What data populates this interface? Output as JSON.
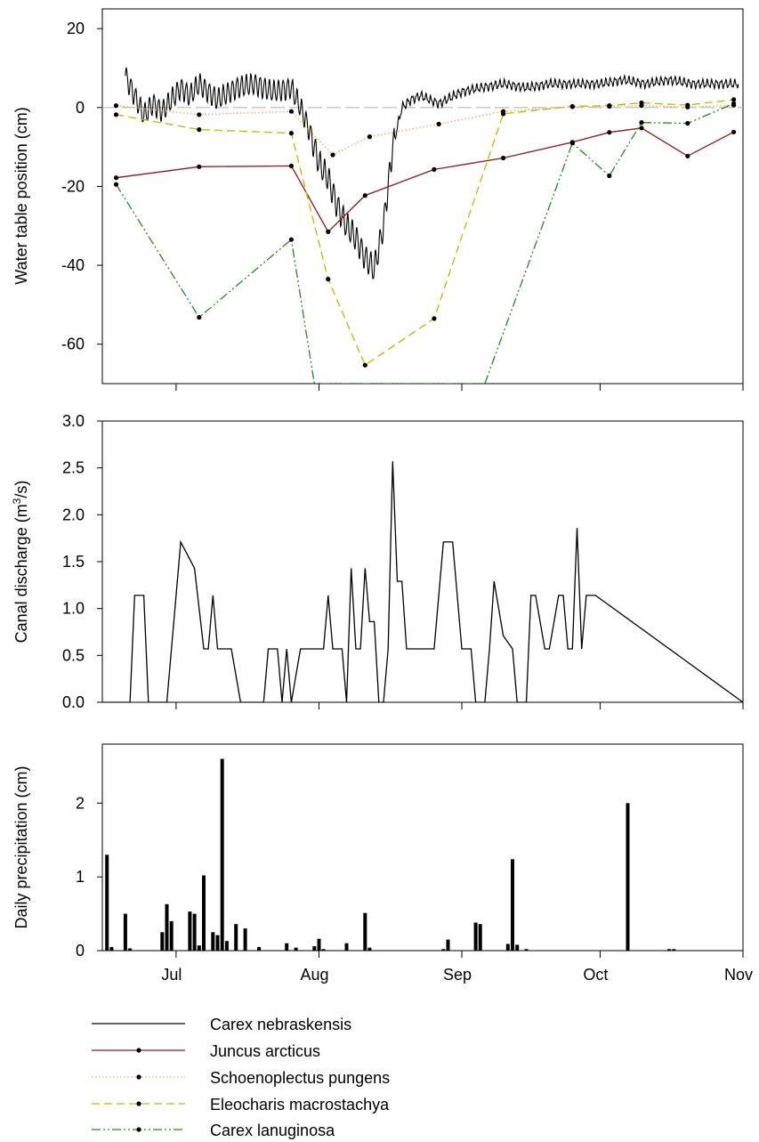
{
  "chart_data": [
    {
      "type": "line",
      "ylabel": "Water table position (cm)",
      "ylim": [
        -70,
        25
      ],
      "xlim": [
        "2010-06-15",
        "2010-11-01"
      ],
      "yticks": [
        20,
        0,
        -20,
        -40,
        -60
      ],
      "reference_line": 0,
      "series": [
        {
          "name": "Carex nebraskensis",
          "style": "solid",
          "color": "#000000",
          "markers": false,
          "x": [
            "2010-06-20",
            "2010-06-22",
            "2010-06-24",
            "2010-06-26",
            "2010-06-28",
            "2010-06-30",
            "2010-07-02",
            "2010-07-04",
            "2010-07-06",
            "2010-07-08",
            "2010-07-10",
            "2010-07-14",
            "2010-07-18",
            "2010-07-22",
            "2010-07-26",
            "2010-07-28",
            "2010-07-30",
            "2010-08-01",
            "2010-08-03",
            "2010-08-05",
            "2010-08-07",
            "2010-08-09",
            "2010-08-11",
            "2010-08-13",
            "2010-08-15",
            "2010-08-17",
            "2010-08-19",
            "2010-08-21",
            "2010-08-23",
            "2010-08-27",
            "2010-09-01",
            "2010-09-05",
            "2010-09-10",
            "2010-09-15",
            "2010-09-20",
            "2010-09-25",
            "2010-10-01",
            "2010-10-06",
            "2010-10-11",
            "2010-10-16",
            "2010-10-21",
            "2010-10-26",
            "2010-10-31"
          ],
          "y": [
            8,
            3,
            -2,
            1,
            -1,
            2,
            5,
            3,
            6,
            4,
            2,
            5,
            6,
            4,
            5,
            0,
            -6,
            -14,
            -18,
            -25,
            -30,
            -33,
            -38,
            -41,
            -30,
            -10,
            0,
            2,
            3,
            1,
            4,
            5,
            6,
            5,
            6,
            6,
            6,
            7,
            6,
            7,
            6,
            6,
            6
          ]
        },
        {
          "name": "Juncus arcticus",
          "style": "solid",
          "color": "#8b1a1a",
          "markers": true,
          "x": [
            "2010-06-18",
            "2010-07-06",
            "2010-07-26",
            "2010-08-03",
            "2010-08-11",
            "2010-08-26",
            "2010-09-10",
            "2010-09-25",
            "2010-10-03",
            "2010-10-10",
            "2010-10-20",
            "2010-10-30"
          ],
          "y": [
            -17.8,
            -15,
            -14.8,
            -31.5,
            -22.3,
            -15.7,
            -12.8,
            -8.8,
            -6.3,
            -5.2,
            -12.3,
            -6.2
          ]
        },
        {
          "name": "Schoenoplectus pungens",
          "style": "dotted",
          "color": "#f4a460",
          "markers": true,
          "x": [
            "2010-06-18",
            "2010-07-06",
            "2010-07-26",
            "2010-08-04",
            "2010-08-12",
            "2010-08-27",
            "2010-09-10",
            "2010-09-25",
            "2010-10-03",
            "2010-10-10",
            "2010-10-20",
            "2010-10-30"
          ],
          "y": [
            0.5,
            -1.8,
            -1,
            -12,
            -7.4,
            -4.2,
            -1,
            0.2,
            0.3,
            0.5,
            0.1,
            0.6
          ]
        },
        {
          "name": "Eleocharis macrostachya",
          "style": "dashed",
          "color": "#c8b400",
          "markers": true,
          "x": [
            "2010-06-18",
            "2010-07-06",
            "2010-07-26",
            "2010-08-03",
            "2010-08-11",
            "2010-08-26",
            "2010-09-10",
            "2010-09-25",
            "2010-10-03",
            "2010-10-10",
            "2010-10-20",
            "2010-10-30"
          ],
          "y": [
            -1.8,
            -5.6,
            -6.5,
            -43.5,
            -65.3,
            -53.5,
            -1.6,
            0.3,
            0.5,
            1.2,
            0.6,
            2
          ]
        },
        {
          "name": "Carex lanuginosa",
          "style": "dashdotdot",
          "color": "#228b22",
          "markers": true,
          "x": [
            "2010-06-18",
            "2010-07-06",
            "2010-07-26",
            "2010-07-31",
            "2010-09-06",
            "2010-09-25",
            "2010-10-03",
            "2010-10-10",
            "2010-10-20",
            "2010-10-30"
          ],
          "y": [
            -19.5,
            -53.2,
            -33.5,
            -70,
            -70,
            -9,
            -17.3,
            -3.8,
            -4,
            1
          ]
        }
      ]
    },
    {
      "type": "line",
      "ylabel_pre": "Canal discharge (m",
      "ylabel_sup": "3",
      "ylabel_post": "/s)",
      "ylim": [
        0,
        3
      ],
      "yticks": [
        "0.0",
        "0.5",
        "1.0",
        "1.5",
        "2.0",
        "2.5",
        "3.0"
      ],
      "series": [
        {
          "name": "",
          "color": "#000000",
          "x": [
            "2010-06-15",
            "2010-06-21",
            "2010-06-22",
            "2010-06-24",
            "2010-06-25",
            "2010-06-29",
            "2010-07-02",
            "2010-07-05",
            "2010-07-07",
            "2010-07-08",
            "2010-07-09",
            "2010-07-10",
            "2010-07-11",
            "2010-07-13",
            "2010-07-15",
            "2010-07-20",
            "2010-07-21",
            "2010-07-23",
            "2010-07-24",
            "2010-07-25",
            "2010-07-26",
            "2010-07-28",
            "2010-07-29",
            "2010-07-31",
            "2010-08-01",
            "2010-08-02",
            "2010-08-03",
            "2010-08-04",
            "2010-08-05",
            "2010-08-06",
            "2010-08-07",
            "2010-08-08",
            "2010-08-09",
            "2010-08-10",
            "2010-08-11",
            "2010-08-12",
            "2010-08-13",
            "2010-08-14",
            "2010-08-15",
            "2010-08-16",
            "2010-08-17",
            "2010-08-18",
            "2010-08-19",
            "2010-08-20",
            "2010-08-21",
            "2010-08-26",
            "2010-08-28",
            "2010-08-30",
            "2010-09-01",
            "2010-09-02",
            "2010-09-03",
            "2010-09-04",
            "2010-09-06",
            "2010-09-07",
            "2010-09-08",
            "2010-09-10",
            "2010-09-12",
            "2010-09-13",
            "2010-09-15",
            "2010-09-16",
            "2010-09-17",
            "2010-09-19",
            "2010-09-20",
            "2010-09-22",
            "2010-09-23",
            "2010-09-24",
            "2010-09-25",
            "2010-09-26",
            "2010-09-27",
            "2010-09-28",
            "2010-09-30",
            "2010-11-01"
          ],
          "y": [
            0,
            0,
            1.14,
            1.14,
            0,
            0,
            1.71,
            1.43,
            0.57,
            0.57,
            1.14,
            0.57,
            0.57,
            0.57,
            0,
            0,
            0.57,
            0.57,
            0,
            0.57,
            0,
            0.57,
            0.57,
            0.57,
            0.57,
            0.57,
            1.14,
            0.57,
            0.57,
            0.57,
            0,
            1.43,
            0.57,
            0.57,
            1.43,
            0.86,
            0.86,
            0,
            0,
            0.57,
            2.57,
            1.29,
            1.29,
            0.57,
            0.57,
            0.57,
            1.71,
            1.71,
            0.57,
            0.57,
            0.57,
            0,
            0,
            0.57,
            1.29,
            0.71,
            0.57,
            0,
            0,
            1.14,
            1.14,
            0.57,
            0.57,
            1.14,
            1.14,
            0.57,
            0.57,
            1.86,
            0.57,
            1.14,
            1.14,
            0
          ]
        }
      ]
    },
    {
      "type": "bar",
      "ylabel": "Daily precipitation (cm)",
      "ylim": [
        0,
        2.8
      ],
      "yticks": [
        "0",
        "1",
        "2"
      ],
      "xtick_labels": [
        "Jul",
        "Aug",
        "Sep",
        "Oct",
        "Nov"
      ],
      "series": [
        {
          "name": "",
          "color": "#000000",
          "x": [
            "2010-06-16",
            "2010-06-17",
            "2010-06-20",
            "2010-06-21",
            "2010-06-28",
            "2010-06-29",
            "2010-06-30",
            "2010-07-04",
            "2010-07-05",
            "2010-07-06",
            "2010-07-07",
            "2010-07-09",
            "2010-07-10",
            "2010-07-11",
            "2010-07-12",
            "2010-07-14",
            "2010-07-16",
            "2010-07-19",
            "2010-07-25",
            "2010-07-27",
            "2010-07-31",
            "2010-08-01",
            "2010-08-02",
            "2010-08-07",
            "2010-08-11",
            "2010-08-12",
            "2010-08-28",
            "2010-08-29",
            "2010-09-04",
            "2010-09-05",
            "2010-09-11",
            "2010-09-12",
            "2010-09-13",
            "2010-09-15",
            "2010-10-07",
            "2010-10-16",
            "2010-10-17"
          ],
          "y": [
            1.3,
            0.05,
            0.5,
            0.03,
            0.25,
            0.63,
            0.4,
            0.53,
            0.5,
            0.07,
            1.02,
            0.25,
            0.21,
            2.6,
            0.13,
            0.36,
            0.3,
            0.05,
            0.1,
            0.04,
            0.06,
            0.16,
            0.02,
            0.1,
            0.51,
            0.04,
            0.02,
            0.15,
            0.38,
            0.36,
            0.09,
            1.24,
            0.08,
            0.02,
            2.0,
            0.02,
            0.02
          ]
        }
      ]
    }
  ]
}
